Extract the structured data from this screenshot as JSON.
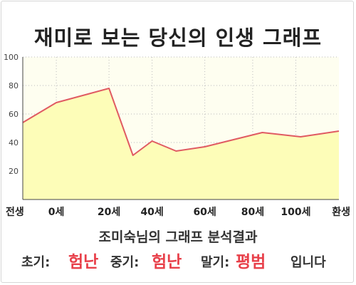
{
  "title": "재미로 보는 당신의 인생 그래프",
  "subtitle": "조미숙님의 그래프 분석결과",
  "result": {
    "early_label": "초기:",
    "early_value": "험난",
    "middle_label": "중기:",
    "middle_value": "험난",
    "late_label": "말기:",
    "late_value": "평범",
    "suffix": "입니다",
    "value_color": "#e8404a"
  },
  "chart_data": {
    "type": "area",
    "title": "",
    "xlabel": "",
    "ylabel": "",
    "x": [
      0,
      7,
      18,
      23,
      27,
      32,
      38,
      44,
      50,
      58,
      66
    ],
    "values": [
      54,
      68,
      78,
      31,
      41,
      34,
      37,
      42,
      47,
      44,
      48
    ],
    "ylim": [
      0,
      100
    ],
    "xlim": [
      0,
      66
    ],
    "yticks": [
      20,
      40,
      60,
      80,
      100
    ],
    "xticks": [
      {
        "x": 0,
        "label": "전생"
      },
      {
        "x": 7,
        "label": "0세"
      },
      {
        "x": 18,
        "label": "20세"
      },
      {
        "x": 27,
        "label": "40세"
      },
      {
        "x": 38,
        "label": "60세"
      },
      {
        "x": 48,
        "label": "80세"
      },
      {
        "x": 57,
        "label": "100세"
      },
      {
        "x": 66,
        "label": "환생"
      }
    ],
    "grid": true,
    "colors": {
      "background": "#fefef0",
      "fill": "#fdfdb8",
      "line": "#e05a62",
      "grid": "#bbbbbb",
      "axis": "#444444"
    }
  }
}
